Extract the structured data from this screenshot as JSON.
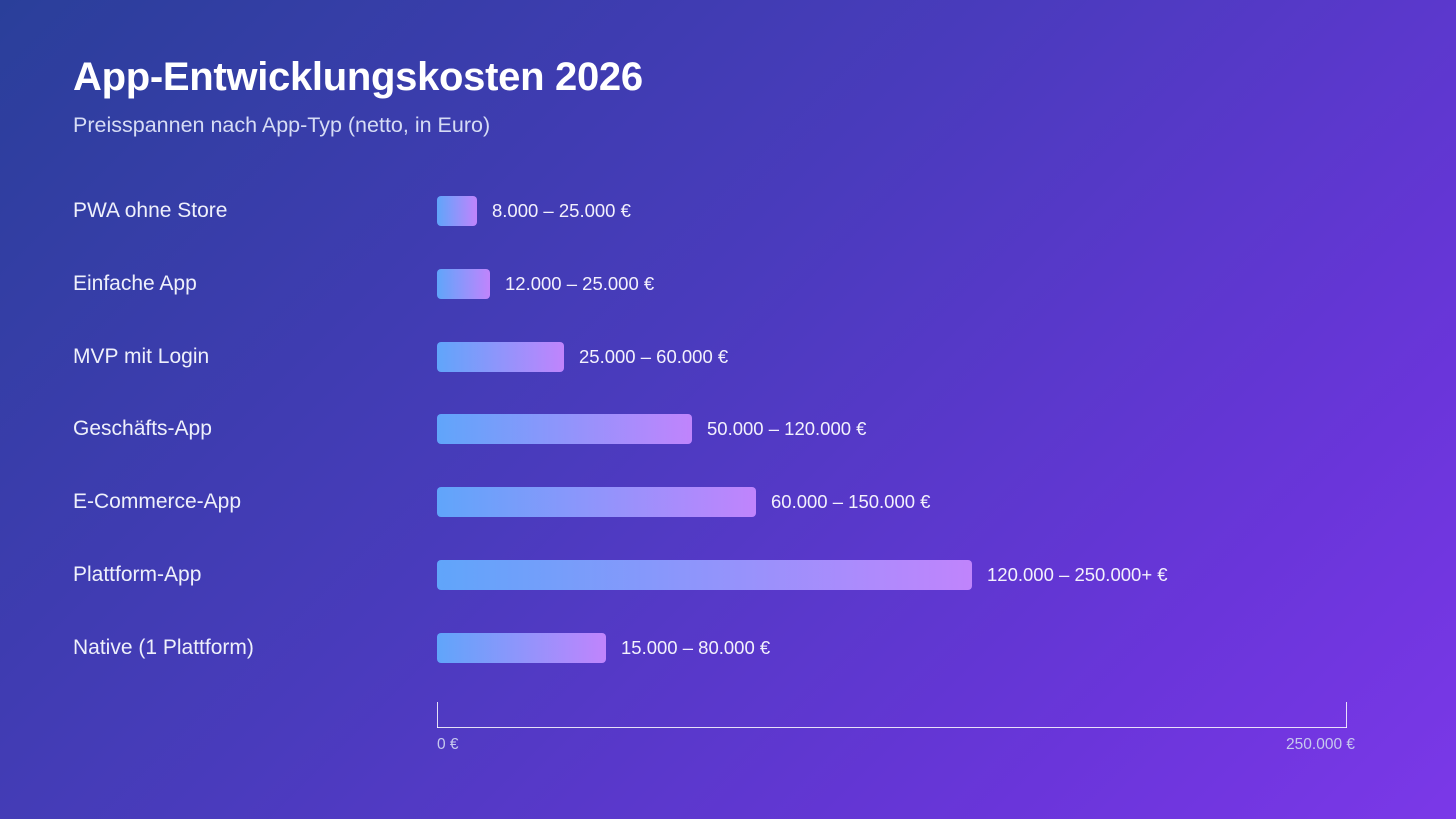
{
  "chart_data": {
    "type": "bar",
    "orientation": "horizontal",
    "title": "App-Entwicklungskosten 2026",
    "subtitle": "Preisspannen nach App-Typ (netto, in Euro)",
    "categories": [
      "PWA ohne Store",
      "Einfache App",
      "MVP mit Login",
      "Geschäfts-App",
      "E-Commerce-App",
      "Plattform-App",
      "Native (1 Plattform)"
    ],
    "values": [
      11000,
      14500,
      35000,
      70000,
      87500,
      147000,
      46500
    ],
    "value_labels": [
      "8.000 – 25.000 €",
      "12.000 – 25.000 €",
      "25.000 – 60.000 €",
      "50.000 – 120.000 €",
      "60.000 – 150.000 €",
      "120.000 – 250.000+ €",
      "15.000 – 80.000 €"
    ],
    "xlim": [
      0,
      250000
    ],
    "x_tick_labels": [
      "0 €",
      "250.000 €"
    ],
    "bar_gradient": [
      "#60a5fa",
      "#c084fc"
    ],
    "grid": false
  }
}
